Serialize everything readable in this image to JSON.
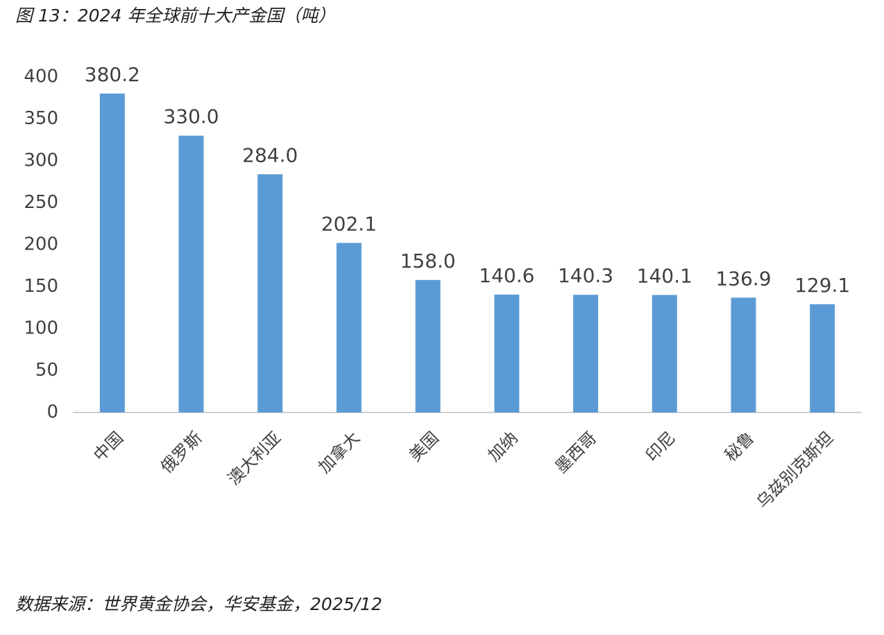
{
  "chart_data": {
    "type": "bar",
    "title": "图 13：2024 年全球前十大产金国（吨）",
    "source": "数据来源：世界黄金协会，华安基金，2025/12",
    "categories": [
      "中国",
      "俄罗斯",
      "澳大利亚",
      "加拿大",
      "美国",
      "加纳",
      "墨西哥",
      "印尼",
      "秘鲁",
      "乌兹别克斯坦"
    ],
    "values": [
      380.2,
      330,
      284,
      202.1,
      158,
      140.6,
      140.3,
      140.1,
      136.9,
      129.1
    ],
    "value_labels": [
      "380.2",
      "330.0",
      "284.0",
      "202.1",
      "158.0",
      "140.6",
      "140.3",
      "140.1",
      "136.9",
      "129.1"
    ],
    "color": "#5b9bd5",
    "ylim": [
      0,
      400
    ],
    "yticks": [
      0,
      50,
      100,
      150,
      200,
      250,
      300,
      350,
      400
    ],
    "grid": false
  }
}
